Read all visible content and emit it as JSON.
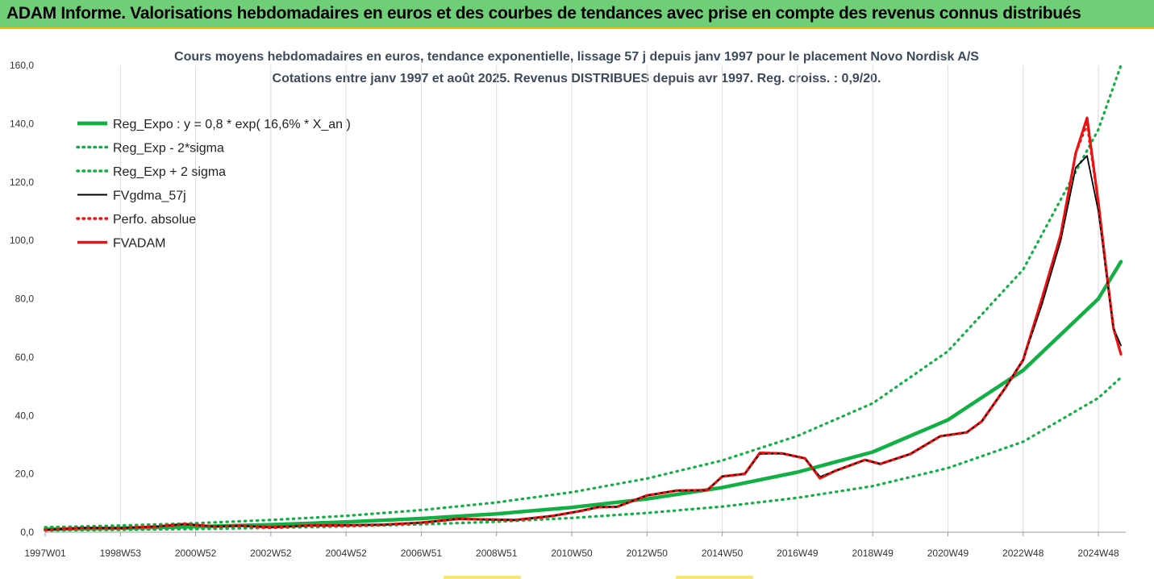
{
  "banner": {
    "title": "ADAM Informe. Valorisations hebdomadaires en euros et des courbes de tendances avec prise en compte des revenus connus distribués"
  },
  "colors": {
    "banner_bg": "#6ecf77",
    "accent_gold": "#f2c200",
    "reg_green": "#11b044",
    "fvgdma": "#000000",
    "fvadam": "#ee1111"
  },
  "chart_data": {
    "type": "line",
    "title": "Cours moyens hebdomadaires en euros, tendance exponentielle, lissage 57 j depuis janv 1997 pour le placement Novo Nordisk A/S",
    "subtitle": "Cotations entre janv 1997 et août 2025. Revenus DISTRIBUES depuis avr 1997. Reg. croiss. : 0,9/20.",
    "xlabel": "",
    "ylabel": "",
    "x_range": [
      "1997W01",
      "2025W34"
    ],
    "ylim": [
      0,
      160
    ],
    "y_ticks": [
      "0,0",
      "20,0",
      "40,0",
      "60,0",
      "80,0",
      "100,0",
      "120,0",
      "140,0",
      "160,0"
    ],
    "x_ticks": [
      {
        "label": "1997W01",
        "t": 0
      },
      {
        "label": "1998W53",
        "t": 2
      },
      {
        "label": "2000W52",
        "t": 4
      },
      {
        "label": "2002W52",
        "t": 6
      },
      {
        "label": "2004W52",
        "t": 8
      },
      {
        "label": "2006W51",
        "t": 10
      },
      {
        "label": "2008W51",
        "t": 12
      },
      {
        "label": "2010W50",
        "t": 14
      },
      {
        "label": "2012W50",
        "t": 16
      },
      {
        "label": "2014W50",
        "t": 18
      },
      {
        "label": "2016W49",
        "t": 20
      },
      {
        "label": "2018W49",
        "t": 22
      },
      {
        "label": "2020W49",
        "t": 24
      },
      {
        "label": "2022W48",
        "t": 26
      },
      {
        "label": "2024W48",
        "t": 28
      }
    ],
    "grid": "vertical",
    "legend_position": "top-left",
    "series": [
      {
        "name": "Reg_Expo : y = 0,8 * exp( 16,6% *  X_an )",
        "style": "solid-thick",
        "color": "#11b044",
        "x": [
          0,
          2,
          4,
          6,
          8,
          10,
          12,
          14,
          16,
          18,
          20,
          22,
          24,
          26,
          28,
          28.6
        ],
        "values": [
          1.0,
          1.4,
          1.9,
          2.6,
          3.5,
          4.7,
          6.3,
          8.5,
          11.4,
          15.3,
          20.6,
          27.5,
          38.5,
          55.5,
          80.0,
          92.7
        ]
      },
      {
        "name": "Reg_Exp - 2*sigma",
        "style": "dotted",
        "color": "#11b044",
        "x": [
          0,
          2,
          4,
          6,
          8,
          10,
          12,
          14,
          16,
          18,
          20,
          22,
          24,
          26,
          28,
          28.6
        ],
        "values": [
          0.6,
          0.8,
          1.1,
          1.5,
          2.0,
          2.7,
          3.6,
          4.9,
          6.6,
          8.8,
          11.8,
          15.8,
          22.0,
          31.0,
          46.0,
          53.0
        ]
      },
      {
        "name": "Reg_Exp + 2 sigma",
        "style": "dotted",
        "color": "#11b044",
        "x": [
          0,
          2,
          4,
          6,
          8,
          10,
          12,
          14,
          16,
          18,
          20,
          22,
          24,
          26,
          28,
          28.6
        ],
        "values": [
          1.7,
          2.3,
          3.1,
          4.2,
          5.6,
          7.6,
          10.2,
          13.7,
          18.4,
          24.6,
          33.0,
          44.2,
          62.0,
          90.0,
          138.0,
          160.0
        ]
      },
      {
        "name": "FVgdma_57j",
        "style": "solid",
        "color": "#000000",
        "x": [
          0,
          1,
          2,
          3,
          3.7,
          4.5,
          5.2,
          6,
          7,
          8,
          9,
          10,
          11,
          11.6,
          12.5,
          13.5,
          14.2,
          14.7,
          15.2,
          16,
          16.8,
          17.6,
          18,
          18.6,
          19,
          19.6,
          20.2,
          20.6,
          21,
          21.8,
          22.2,
          23,
          23.8,
          24.5,
          24.9,
          25.5,
          26,
          26.5,
          27,
          27.4,
          27.7,
          28,
          28.2,
          28.4,
          28.6
        ],
        "values": [
          0.8,
          1.5,
          1.4,
          2.0,
          2.7,
          2.0,
          2.2,
          1.7,
          2.3,
          2.4,
          2.6,
          3.3,
          4.6,
          4.4,
          4.2,
          5.6,
          7.2,
          8.6,
          8.7,
          12.6,
          14.3,
          14.4,
          19.1,
          20.0,
          26.8,
          27.0,
          25.3,
          19.0,
          21.0,
          24.8,
          23.4,
          26.8,
          32.9,
          34.2,
          38.0,
          49.0,
          59.0,
          78.0,
          100.0,
          125.0,
          129.0,
          110.0,
          90.0,
          70.0,
          64.0
        ]
      },
      {
        "name": "Perfo. absolue",
        "style": "dotted",
        "color": "#ee1111",
        "x": [
          0,
          1,
          2,
          3,
          3.7,
          4.5,
          5.2,
          6,
          7,
          8,
          9,
          10,
          11,
          11.6,
          12.5,
          13.5,
          14.2,
          14.7,
          15.2,
          16,
          16.8,
          17.6,
          18,
          18.6,
          19,
          19.6,
          20.2,
          20.6,
          21,
          21.8,
          22.2,
          23,
          23.8,
          24.5,
          24.9,
          25.5,
          26,
          26.5,
          27,
          27.4,
          27.7,
          28,
          28.2,
          28.4,
          28.6
        ],
        "values": [
          0.8,
          1.5,
          1.4,
          2.0,
          2.8,
          2.0,
          2.2,
          1.7,
          2.3,
          2.4,
          2.6,
          3.3,
          4.6,
          4.4,
          4.2,
          5.6,
          7.2,
          8.6,
          8.7,
          12.6,
          14.3,
          14.4,
          19.1,
          20.0,
          27.2,
          27.0,
          25.3,
          18.5,
          21.0,
          24.8,
          23.4,
          26.8,
          32.9,
          34.2,
          38.0,
          49.0,
          59.0,
          80.0,
          102.0,
          130.0,
          140.0,
          113.0,
          91.0,
          70.0,
          61.0
        ]
      },
      {
        "name": "FVADAM",
        "style": "solid-thick",
        "color": "#ee1111",
        "x": [
          0,
          1,
          2,
          3,
          3.7,
          4.5,
          5.2,
          6,
          7,
          8,
          9,
          10,
          11,
          11.6,
          12.5,
          13.5,
          14.2,
          14.7,
          15.2,
          16,
          16.8,
          17.6,
          18,
          18.6,
          19,
          19.6,
          20.2,
          20.6,
          21,
          21.8,
          22.2,
          23,
          23.8,
          24.5,
          24.9,
          25.5,
          26,
          26.5,
          27,
          27.4,
          27.7,
          28,
          28.2,
          28.4,
          28.6
        ],
        "values": [
          0.8,
          1.5,
          1.4,
          2.0,
          2.8,
          2.0,
          2.2,
          1.7,
          2.3,
          2.4,
          2.6,
          3.3,
          4.6,
          4.4,
          4.2,
          5.6,
          7.2,
          8.6,
          8.7,
          12.6,
          14.3,
          14.4,
          19.1,
          20.0,
          27.2,
          27.0,
          25.3,
          18.5,
          21.0,
          24.8,
          23.4,
          26.8,
          32.9,
          34.2,
          38.0,
          49.0,
          59.0,
          80.0,
          102.0,
          130.0,
          142.0,
          113.0,
          91.0,
          70.0,
          61.0
        ]
      }
    ]
  }
}
